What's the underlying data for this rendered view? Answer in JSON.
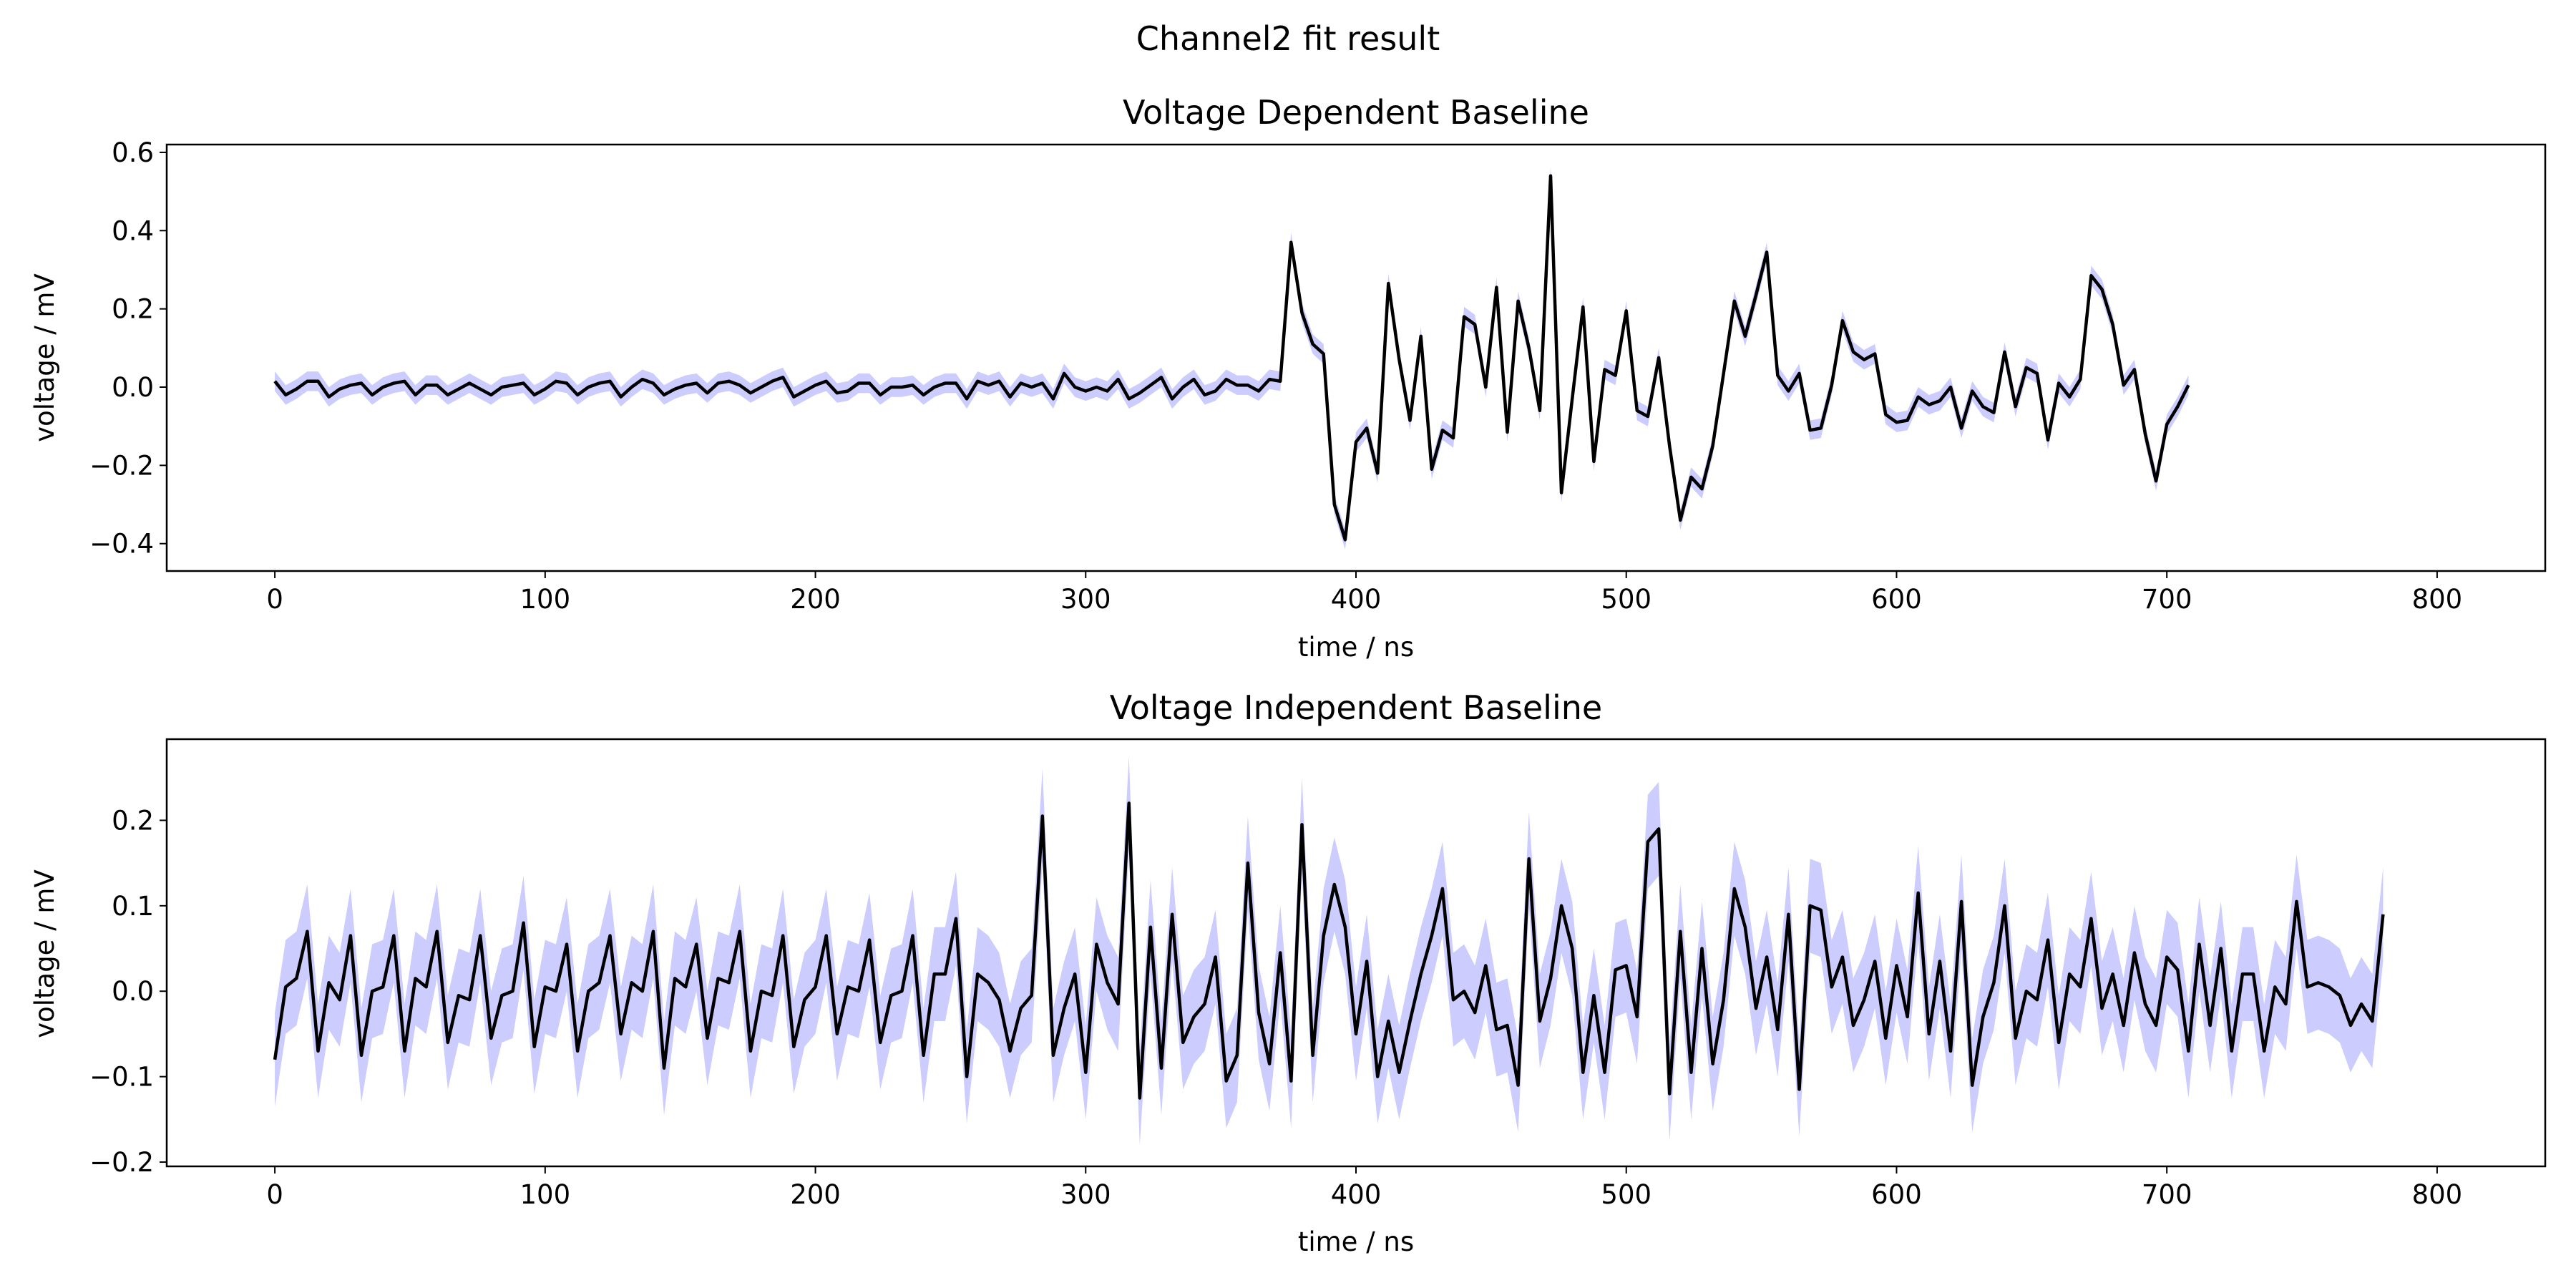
{
  "figure": {
    "suptitle": "Channel2 fit result"
  },
  "chart_data": [
    {
      "type": "line",
      "title": "Voltage Dependent Baseline",
      "xlabel": "time / ns",
      "ylabel": "voltage / mV",
      "xlim": [
        -40,
        840
      ],
      "ylim": [
        -0.47,
        0.62
      ],
      "xticks": [
        0,
        100,
        200,
        300,
        400,
        500,
        600,
        700,
        800
      ],
      "yticks": [
        -0.4,
        -0.2,
        0.0,
        0.2,
        0.4,
        0.6
      ],
      "xtick_labels": [
        "0",
        "100",
        "200",
        "300",
        "400",
        "500",
        "600",
        "700",
        "800"
      ],
      "ytick_labels": [
        "−0.4",
        "−0.2",
        "0.0",
        "0.2",
        "0.4",
        "0.6"
      ],
      "grid": false,
      "line_color": "#000000",
      "band_color": "#ccccff",
      "band_halfwidth": 0.025,
      "x_start": 0,
      "x_step": 4,
      "values": [
        0.015,
        -0.02,
        -0.005,
        0.015,
        0.015,
        -0.025,
        -0.005,
        0.005,
        0.01,
        -0.02,
        0.0,
        0.01,
        0.015,
        -0.02,
        0.005,
        0.005,
        -0.02,
        -0.005,
        0.01,
        -0.005,
        -0.02,
        0.0,
        0.005,
        0.01,
        -0.02,
        -0.005,
        0.015,
        0.01,
        -0.02,
        0.0,
        0.01,
        0.015,
        -0.025,
        0.0,
        0.02,
        0.01,
        -0.02,
        -0.005,
        0.005,
        0.01,
        -0.015,
        0.01,
        0.015,
        0.005,
        -0.015,
        0.0,
        0.015,
        0.025,
        -0.025,
        -0.01,
        0.005,
        0.015,
        -0.015,
        -0.01,
        0.01,
        0.01,
        -0.02,
        0.0,
        0.0,
        0.005,
        -0.02,
        0.0,
        0.01,
        0.01,
        -0.03,
        0.015,
        0.005,
        0.015,
        -0.025,
        0.01,
        0.0,
        0.01,
        -0.03,
        0.035,
        0.0,
        -0.01,
        0.0,
        -0.01,
        0.02,
        -0.03,
        -0.015,
        0.005,
        0.025,
        -0.03,
        0.0,
        0.02,
        -0.02,
        -0.01,
        0.02,
        0.005,
        0.005,
        -0.01,
        0.02,
        0.015,
        0.37,
        0.19,
        0.11,
        0.085,
        -0.3,
        -0.39,
        -0.14,
        -0.105,
        -0.22,
        0.265,
        0.07,
        -0.085,
        0.13,
        -0.21,
        -0.11,
        -0.13,
        0.18,
        0.16,
        0.0,
        0.255,
        -0.115,
        0.22,
        0.1,
        -0.06,
        0.54,
        -0.27,
        -0.03,
        0.205,
        -0.19,
        0.045,
        0.03,
        0.195,
        -0.06,
        -0.075,
        0.075,
        -0.15,
        -0.34,
        -0.23,
        -0.26,
        -0.15,
        0.035,
        0.22,
        0.13,
        0.235,
        0.345,
        0.03,
        -0.01,
        0.035,
        -0.11,
        -0.105,
        0.005,
        0.17,
        0.09,
        0.07,
        0.085,
        -0.07,
        -0.09,
        -0.085,
        -0.025,
        -0.045,
        -0.035,
        0.0,
        -0.105,
        -0.01,
        -0.05,
        -0.065,
        0.09,
        -0.05,
        0.05,
        0.035,
        -0.135,
        0.01,
        -0.025,
        0.02,
        0.285,
        0.25,
        0.16,
        0.005,
        0.045,
        -0.12,
        -0.24,
        -0.095,
        -0.05,
        0.005
      ]
    },
    {
      "type": "line",
      "title": "Voltage Independent Baseline",
      "xlabel": "time / ns",
      "ylabel": "voltage / mV",
      "xlim": [
        -40,
        840
      ],
      "ylim": [
        -0.205,
        0.295
      ],
      "xticks": [
        0,
        100,
        200,
        300,
        400,
        500,
        600,
        700,
        800
      ],
      "yticks": [
        -0.2,
        -0.1,
        0.0,
        0.1,
        0.2
      ],
      "xtick_labels": [
        "0",
        "100",
        "200",
        "300",
        "400",
        "500",
        "600",
        "700",
        "800"
      ],
      "ytick_labels": [
        "−0.2",
        "−0.1",
        "0.0",
        "0.1",
        "0.2"
      ],
      "grid": false,
      "line_color": "#000000",
      "band_color": "#ccccff",
      "band_halfwidth": 0.055,
      "x_start": 0,
      "x_step": 4,
      "values": [
        -0.08,
        0.005,
        0.015,
        0.07,
        -0.07,
        0.01,
        -0.01,
        0.065,
        -0.075,
        0.0,
        0.005,
        0.065,
        -0.07,
        0.015,
        0.005,
        0.07,
        -0.06,
        -0.005,
        -0.01,
        0.065,
        -0.055,
        -0.005,
        0.0,
        0.08,
        -0.065,
        0.005,
        0.0,
        0.055,
        -0.07,
        0.0,
        0.01,
        0.065,
        -0.05,
        0.01,
        0.0,
        0.07,
        -0.09,
        0.015,
        0.005,
        0.055,
        -0.055,
        0.015,
        0.01,
        0.07,
        -0.07,
        0.0,
        -0.005,
        0.065,
        -0.065,
        -0.01,
        0.005,
        0.065,
        -0.05,
        0.005,
        0.0,
        0.06,
        -0.06,
        -0.005,
        0.0,
        0.065,
        -0.075,
        0.02,
        0.02,
        0.085,
        -0.1,
        0.02,
        0.01,
        -0.01,
        -0.07,
        -0.02,
        -0.005,
        0.205,
        -0.075,
        -0.02,
        0.02,
        -0.095,
        0.055,
        0.01,
        -0.015,
        0.22,
        -0.125,
        0.075,
        -0.09,
        0.09,
        -0.06,
        -0.03,
        -0.015,
        0.04,
        -0.105,
        -0.075,
        0.15,
        -0.025,
        -0.085,
        0.045,
        -0.105,
        0.195,
        -0.075,
        0.065,
        0.125,
        0.075,
        -0.05,
        0.035,
        -0.1,
        -0.035,
        -0.095,
        -0.035,
        0.02,
        0.065,
        0.12,
        -0.01,
        0.0,
        -0.025,
        0.03,
        -0.045,
        -0.04,
        -0.11,
        0.155,
        -0.035,
        0.015,
        0.1,
        0.05,
        -0.095,
        -0.005,
        -0.095,
        0.025,
        0.03,
        -0.03,
        0.175,
        0.19,
        -0.12,
        0.07,
        -0.095,
        0.05,
        -0.085,
        -0.01,
        0.12,
        0.075,
        -0.02,
        0.04,
        -0.045,
        0.09,
        -0.115,
        0.1,
        0.095,
        0.005,
        0.04,
        -0.04,
        -0.01,
        0.035,
        -0.055,
        0.03,
        -0.03,
        0.115,
        -0.05,
        0.035,
        -0.07,
        0.105,
        -0.11,
        -0.03,
        0.01,
        0.1,
        -0.055,
        0.0,
        -0.01,
        0.06,
        -0.06,
        0.02,
        0.005,
        0.085,
        -0.02,
        0.02,
        -0.04,
        0.045,
        -0.015,
        -0.04,
        0.04,
        0.025,
        -0.07,
        0.055,
        -0.04,
        0.05,
        -0.07,
        0.02,
        0.02,
        -0.07,
        0.005,
        -0.015,
        0.105,
        0.005,
        0.01,
        0.005,
        -0.005,
        -0.04,
        -0.015,
        -0.035,
        0.09
      ]
    }
  ]
}
